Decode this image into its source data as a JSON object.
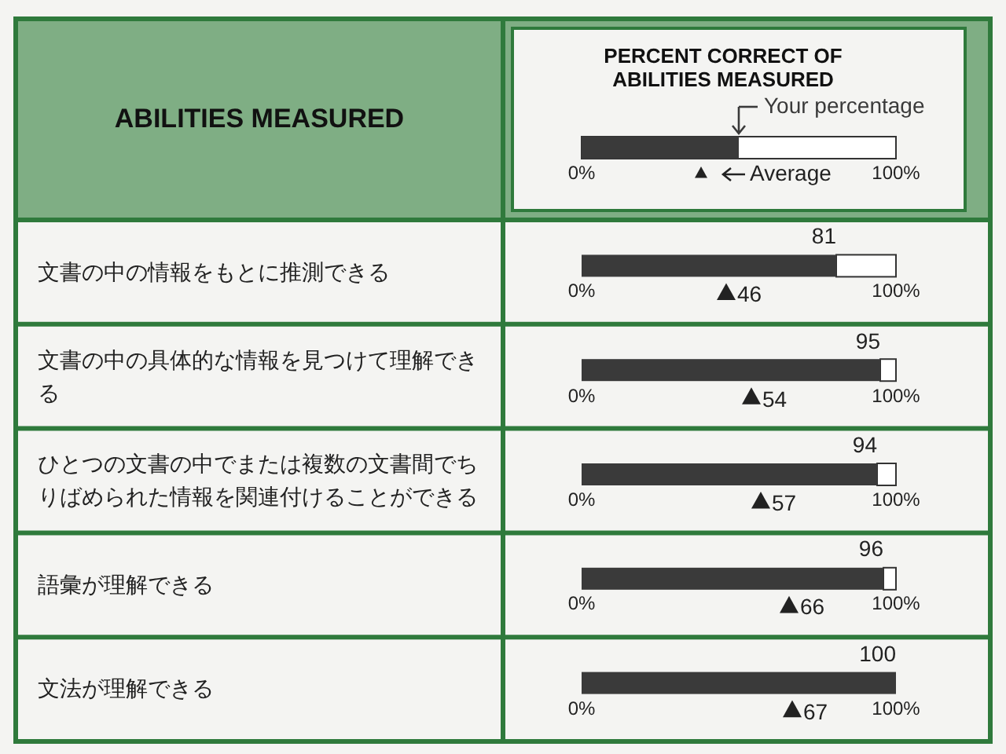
{
  "chart_data": {
    "type": "bar",
    "orientation": "horizontal",
    "title": "PERCENT CORRECT OF ABILITIES MEASURED",
    "ylabel": "ABILITIES MEASURED",
    "categories": [
      "文書の中の情報をもとに推測できる",
      "文書の中の具体的な情報を見つけて理解できる",
      "ひとつの文書の中でまたは複数の文書間でちりばめられた情報を関連付けることができる",
      "語彙が理解できる",
      "文法が理解できる"
    ],
    "series": [
      {
        "name": "Your percentage",
        "color": "#3a3a3a",
        "values": [
          81,
          95,
          94,
          96,
          100
        ]
      },
      {
        "name": "Average",
        "type": "scatter",
        "marker": "triangle",
        "color": "#222222",
        "values": [
          46,
          54,
          57,
          66,
          67
        ]
      }
    ],
    "xlim": [
      0,
      100
    ],
    "xticks": [
      {
        "value": 0,
        "label": "0%"
      },
      {
        "value": 100,
        "label": "100%"
      }
    ],
    "data_labels": true,
    "legend": "top",
    "grid": false
  }
}
